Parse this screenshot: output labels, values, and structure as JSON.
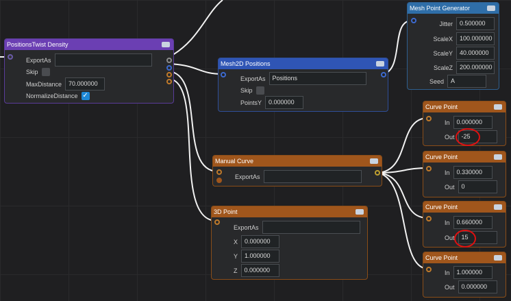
{
  "nodes": {
    "twist": {
      "title": "PositionsTwist Density",
      "export_as_label": "ExportAs",
      "export_as": "",
      "skip_label": "Skip",
      "max_distance_label": "MaxDistance",
      "max_distance": "70.000000",
      "normalize_label": "NormalizeDistance",
      "normalize_checked": true
    },
    "mesh2d": {
      "title": "Mesh2D Positions",
      "export_as_label": "ExportAs",
      "export_as": "Positions",
      "skip_label": "Skip",
      "points_y_label": "PointsY",
      "points_y": "0.000000"
    },
    "meshgen": {
      "title": "Mesh Point Generator",
      "jitter_label": "Jitter",
      "jitter": "0.500000",
      "scalex_label": "ScaleX",
      "scalex": "100.000000",
      "scaley_label": "ScaleY",
      "scaley": "40.000000",
      "scalez_label": "ScaleZ",
      "scalez": "200.000000",
      "seed_label": "Seed",
      "seed": "A"
    },
    "manual_curve": {
      "title": "Manual Curve",
      "export_as_label": "ExportAs",
      "export_as": ""
    },
    "point3d": {
      "title": "3D Point",
      "export_as_label": "ExportAs",
      "export_as": "",
      "x_label": "X",
      "x": "0.000000",
      "y_label": "Y",
      "y": "1.000000",
      "z_label": "Z",
      "z": "0.000000"
    },
    "curve_points": [
      {
        "title": "Curve Point",
        "in_label": "In",
        "in": "0.000000",
        "out_label": "Out",
        "out": "-25"
      },
      {
        "title": "Curve Point",
        "in_label": "In",
        "in": "0.330000",
        "out_label": "Out",
        "out": "0"
      },
      {
        "title": "Curve Point",
        "in_label": "In",
        "in": "0.660000",
        "out_label": "Out",
        "out": "15"
      },
      {
        "title": "Curve Point",
        "in_label": "In",
        "in": "1.000000",
        "out_label": "Out",
        "out": "0.000000"
      }
    ]
  },
  "colors": {
    "purple": "#6b3fb3",
    "blue": "#2f55b5",
    "steel": "#2f6ea8",
    "orange": "#a0561c",
    "annotation": "#e01010"
  }
}
